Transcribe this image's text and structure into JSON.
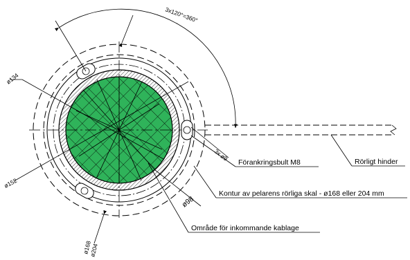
{
  "dimensions": {
    "angle": "3x120°=360°",
    "d134": "ø134",
    "d152": "ø152",
    "d98": "ø98",
    "holes": "3x ø9",
    "d168": "ø168",
    "d204": "ø204"
  },
  "callouts": {
    "anchor_bolt": "Förankringsbult M8",
    "obstacle": "Rörligt hinder",
    "contour": "Kontur av pelarens rörliga skal - ø168 eller 204 mm",
    "cable_area": "Område för inkommande kablage"
  },
  "colors": {
    "fill_core": "#2fb35a",
    "hatch": "#000000",
    "line": "#000000"
  }
}
